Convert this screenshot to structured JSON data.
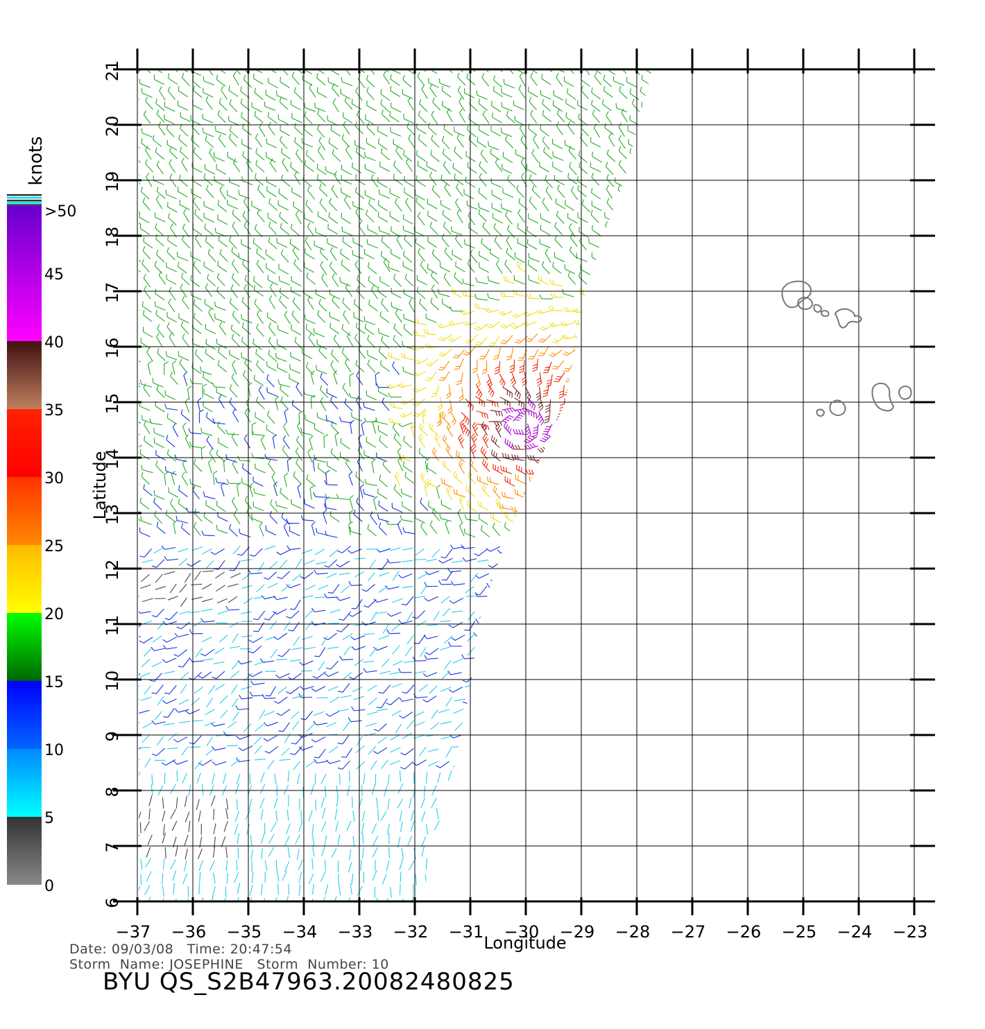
{
  "map": {
    "x_axis_label": "Longitude",
    "y_axis_label": "Latitude",
    "lon_ticks": [
      -37,
      -36,
      -35,
      -34,
      -33,
      -32,
      -31,
      -30,
      -29,
      -28,
      -27,
      -26,
      -25,
      -24,
      -23
    ],
    "lat_ticks": [
      6,
      7,
      8,
      9,
      10,
      11,
      12,
      13,
      14,
      15,
      16,
      17,
      18,
      19,
      20,
      21
    ],
    "lon_range": [
      -37,
      -23
    ],
    "lat_range": [
      6,
      21
    ],
    "storm_center": {
      "lon": -30.0,
      "lat": 14.6
    }
  },
  "legend": {
    "title": "knots",
    "labels": [
      ">50",
      "45",
      "40",
      "35",
      "30",
      "25",
      "20",
      "15",
      "10",
      "5",
      "0"
    ],
    "bands": [
      {
        "from": 0,
        "to": 5,
        "colors": [
          "#888888",
          "#333333"
        ]
      },
      {
        "from": 5,
        "to": 10,
        "colors": [
          "#00ffff",
          "#0088ff"
        ]
      },
      {
        "from": 10,
        "to": 15,
        "colors": [
          "#0066ff",
          "#0000ff"
        ]
      },
      {
        "from": 15,
        "to": 20,
        "colors": [
          "#006600",
          "#00ff00"
        ]
      },
      {
        "from": 20,
        "to": 25,
        "colors": [
          "#ffff00",
          "#ffbb00"
        ]
      },
      {
        "from": 25,
        "to": 30,
        "colors": [
          "#ff8800",
          "#ff3300"
        ]
      },
      {
        "from": 30,
        "to": 35,
        "colors": [
          "#ff0000",
          "#ff2200"
        ]
      },
      {
        "from": 35,
        "to": 40,
        "colors": [
          "#c08060",
          "#401010"
        ]
      },
      {
        "from": 40,
        "to": 50,
        "colors": [
          "#ff00ff",
          "#6600cc"
        ]
      }
    ]
  },
  "footer": {
    "date_line": "Date: 09/03/08   Time: 20:47:54",
    "storm_line": "Storm  Name: JOSEPHINE   Storm  Number: 10",
    "id_line": "BYU  QS_S2B47963.20082480825"
  }
}
